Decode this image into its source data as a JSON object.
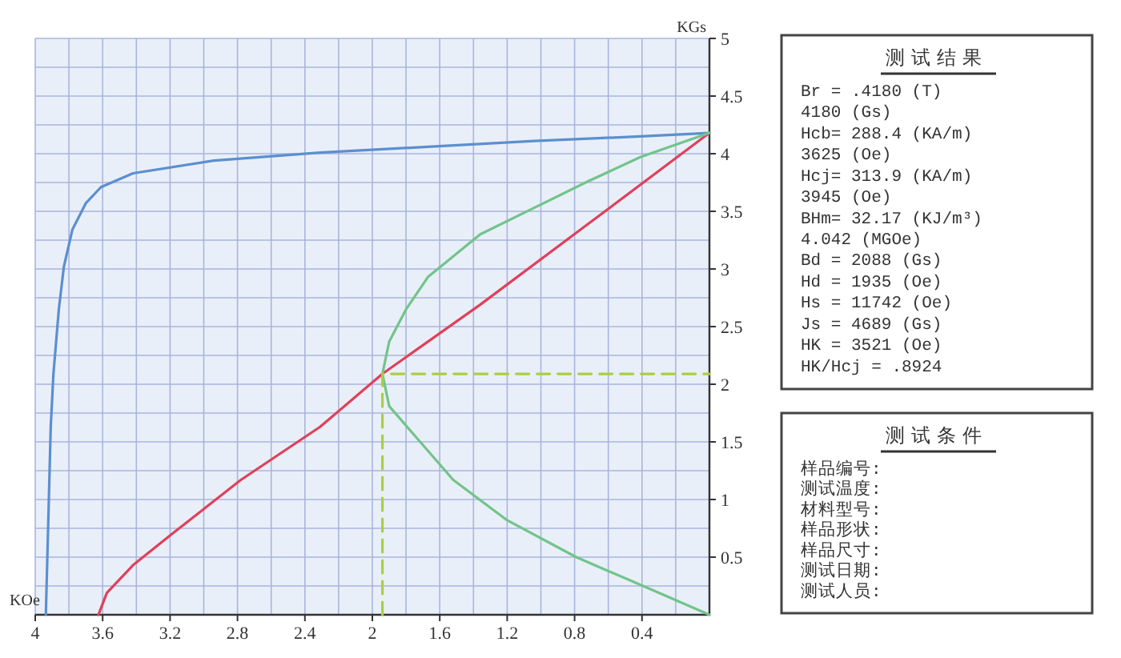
{
  "chart_data": [
    {
      "type": "line",
      "xlabel": "KOe",
      "ylabel": "KGs",
      "xlim": [
        4,
        0
      ],
      "ylim": [
        0,
        5
      ],
      "grid": true,
      "xticks": [
        4,
        {
          "value": 3.8,
          "label": null
        },
        3.6,
        {
          "value": 3.4,
          "label": null
        },
        3.2,
        {
          "value": 3.0,
          "label": null
        },
        2.8,
        {
          "value": 2.6,
          "label": null
        },
        2.4,
        {
          "value": 2.2,
          "label": null
        },
        2,
        {
          "value": 1.8,
          "label": null
        },
        1.6,
        {
          "value": 1.4,
          "label": null
        },
        1.2,
        {
          "value": 1.0,
          "label": null
        },
        0.8,
        {
          "value": 0.6,
          "label": null
        },
        0.4,
        {
          "value": 0.2,
          "label": null
        },
        {
          "value": 0,
          "label": null
        }
      ],
      "yticks": [
        {
          "value": 0,
          "label": null
        },
        {
          "value": 0.25,
          "label": null
        },
        0.5,
        {
          "value": 0.75,
          "label": null
        },
        1,
        {
          "value": 1.25,
          "label": null
        },
        1.5,
        {
          "value": 1.75,
          "label": null
        },
        2,
        {
          "value": 2.25,
          "label": null
        },
        2.5,
        {
          "value": 2.75,
          "label": null
        },
        3,
        {
          "value": 3.25,
          "label": null
        },
        3.5,
        {
          "value": 3.75,
          "label": null
        },
        4,
        {
          "value": 4.25,
          "label": null
        },
        4.5,
        {
          "value": 4.75,
          "label": null
        },
        5
      ],
      "series": [
        {
          "color": "#5b8fd0",
          "x": [
            3.937,
            3.908,
            3.892,
            3.86,
            3.83,
            3.78,
            3.7,
            3.61,
            3.42,
            2.94,
            2.31,
            1.67,
            1.04,
            0.41,
            0
          ],
          "values": [
            0,
            1.63,
            2.09,
            2.65,
            3.02,
            3.34,
            3.57,
            3.71,
            3.83,
            3.94,
            4.01,
            4.06,
            4.11,
            4.15,
            4.18
          ]
        },
        {
          "color": "#e0405a",
          "x": [
            3.625,
            3.575,
            3.42,
            3.19,
            2.78,
            2.31,
            1.94,
            1.36,
            0.72,
            0
          ],
          "values": [
            0,
            0.19,
            0.43,
            0.7,
            1.17,
            1.63,
            2.09,
            2.69,
            3.39,
            4.18
          ]
        },
        {
          "color": "#72c48a",
          "x": [
            0,
            0.41,
            0.79,
            1.2,
            1.52,
            1.74,
            1.9,
            1.94,
            1.9,
            1.8,
            1.67,
            1.36,
            1.04,
            0.72,
            0.41,
            0
          ],
          "values": [
            0,
            0.26,
            0.5,
            0.82,
            1.17,
            1.54,
            1.81,
            2.09,
            2.37,
            2.65,
            2.93,
            3.3,
            3.53,
            3.76,
            3.97,
            4.18
          ]
        },
        {
          "color": "#a8d040",
          "line_style": "dashed",
          "x": [
            1.94,
            1.94,
            0
          ],
          "values": [
            0,
            2.09,
            2.09
          ]
        }
      ]
    },
    {
      "type": "other",
      "title": "测试结果",
      "annotations": [
        "Br = .4180 (T)",
        "4180 (Gs)",
        "Hcb= 288.4 (KA/m)",
        "3625 (Oe)",
        "Hcj= 313.9 (KA/m)",
        "3945 (Oe)",
        "BHm= 32.17 (KJ/m³)",
        "4.042 (MGOe)",
        "Bd = 2088 (Gs)",
        "Hd = 1935 (Oe)",
        "Hs = 11742 (Oe)",
        "Js = 4689 (Gs)",
        "HK = 3521 (Oe)",
        "HK/Hcj = .8924"
      ]
    },
    {
      "type": "other",
      "title": "测试条件",
      "annotations": [
        "样品编号:",
        "测试温度:",
        "材料型号:",
        "样品形状:",
        "样品尺寸:",
        "测试日期:",
        "测试人员:"
      ]
    }
  ]
}
